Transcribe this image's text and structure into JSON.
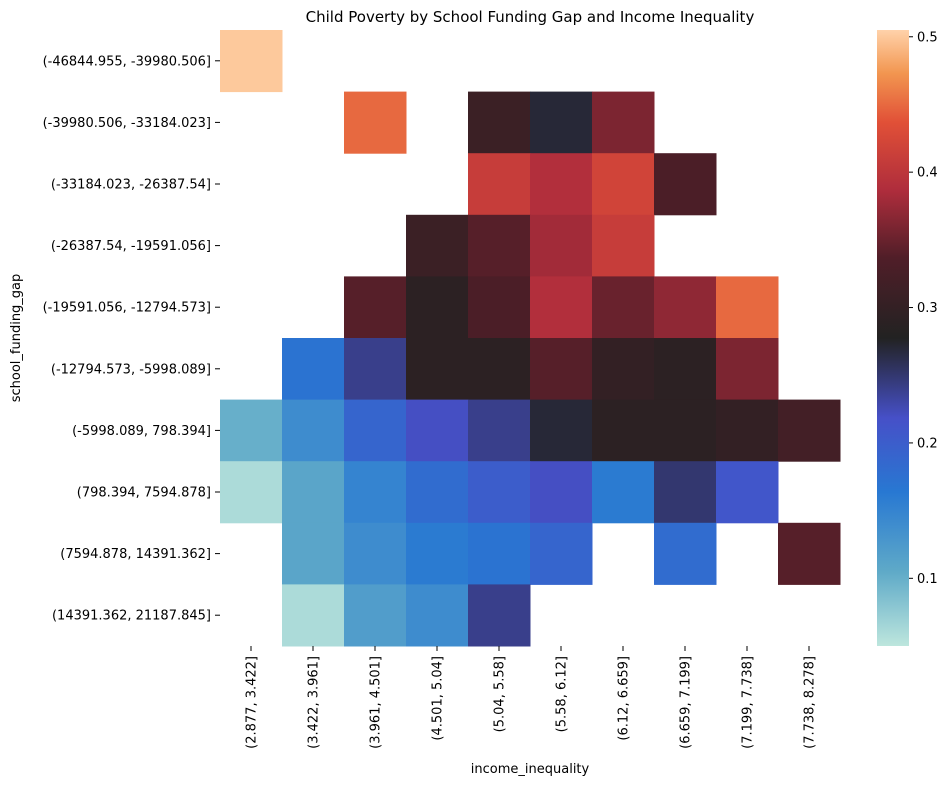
{
  "chart_data": {
    "type": "heatmap",
    "title": "Child Poverty by School Funding Gap and Income Inequality",
    "xlabel": "income_inequality",
    "ylabel": "school_funding_gap",
    "x_categories": [
      "(2.877, 3.422]",
      "(3.422, 3.961]",
      "(3.961, 4.501]",
      "(4.501, 5.04]",
      "(5.04, 5.58]",
      "(5.58, 6.12]",
      "(6.12, 6.659]",
      "(6.659, 7.199]",
      "(7.199, 7.738]",
      "(7.738, 8.278]"
    ],
    "y_categories": [
      "(-46844.955, -39980.506]",
      "(-39980.506, -33184.023]",
      "(-33184.023, -26387.54]",
      "(-26387.54, -19591.056]",
      "(-19591.056, -12794.573]",
      "(-12794.573, -5998.089]",
      "(-5998.089, 798.394]",
      "(798.394, 7594.878]",
      "(7594.878, 14391.362]",
      "(14391.362, 21187.845]"
    ],
    "values": [
      [
        0.5,
        null,
        null,
        null,
        null,
        null,
        null,
        null,
        null,
        null
      ],
      [
        null,
        null,
        0.45,
        null,
        0.31,
        0.27,
        0.36,
        null,
        null,
        null
      ],
      [
        null,
        null,
        null,
        null,
        0.41,
        0.39,
        0.42,
        0.33,
        null,
        null
      ],
      [
        null,
        null,
        null,
        0.31,
        0.34,
        0.38,
        0.41,
        null,
        null,
        null
      ],
      [
        null,
        null,
        0.34,
        0.29,
        0.33,
        0.39,
        0.35,
        0.37,
        0.45,
        null
      ],
      [
        null,
        0.17,
        0.24,
        0.29,
        0.29,
        0.34,
        0.3,
        0.29,
        0.36,
        null
      ],
      [
        0.1,
        0.14,
        0.19,
        0.22,
        0.24,
        0.27,
        0.29,
        0.29,
        0.3,
        0.32
      ],
      [
        0.06,
        0.11,
        0.15,
        0.18,
        0.2,
        0.22,
        0.16,
        0.25,
        0.21,
        null
      ],
      [
        null,
        0.11,
        0.14,
        0.16,
        0.17,
        0.19,
        null,
        0.18,
        null,
        0.34
      ],
      [
        null,
        0.06,
        0.12,
        0.14,
        0.24,
        null,
        null,
        null,
        null,
        null
      ]
    ],
    "colorbar": {
      "vmin": 0.05,
      "vmax": 0.505,
      "ticks": [
        "0.1",
        "0.2",
        "0.3",
        "0.4",
        "0.5"
      ],
      "tick_values": [
        0.1,
        0.2,
        0.3,
        0.4,
        0.5
      ]
    },
    "colormap": "icefire",
    "grid": false,
    "legend": "colorbar-right"
  }
}
